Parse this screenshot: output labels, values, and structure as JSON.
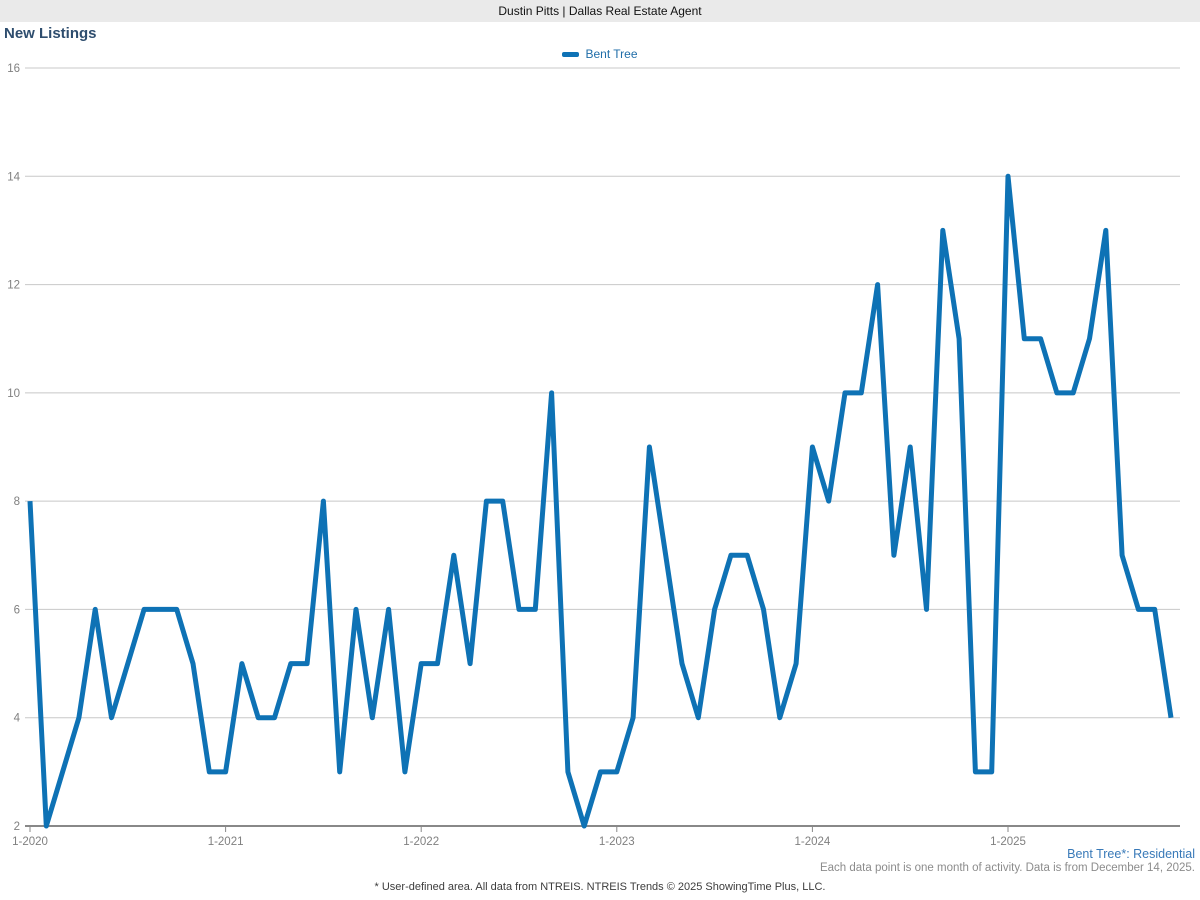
{
  "header": {
    "title": "Dustin Pitts | Dallas Real Estate Agent"
  },
  "page_title": "New Listings",
  "legend": {
    "label": "Bent Tree"
  },
  "footer": {
    "series_note": "Bent Tree*: Residential",
    "activity_note": "Each data point is one month of activity. Data is from December 14, 2025.",
    "disclaimer": "* User-defined area. All data from NTREIS. NTREIS Trends © 2025 ShowingTime Plus, LLC."
  },
  "colors": {
    "line": "#0e72b5",
    "legend_text": "#1f6da8",
    "title_text": "#2e4d6e",
    "series_note_text": "#3879b8",
    "muted_text": "#8c8c8c",
    "grid": "#c8c8c8",
    "axis": "#888888",
    "tick_text": "#808080",
    "header_bg": "#eaeaea"
  },
  "chart_data": {
    "type": "line",
    "title": "New Listings",
    "x_start_month": "1-2020",
    "x_end_month": "11-2025",
    "x_tick_labels": [
      "1-2020",
      "1-2021",
      "1-2022",
      "1-2023",
      "1-2024",
      "1-2025"
    ],
    "y_ticks": [
      2,
      4,
      6,
      8,
      10,
      12,
      14,
      16
    ],
    "ylim": [
      2,
      16
    ],
    "grid": "horizontal",
    "legend_position": "top-center",
    "series": [
      {
        "name": "Bent Tree",
        "months": "monthly from 1-2020 through 11-2025",
        "values": [
          8,
          2,
          3,
          4,
          6,
          4,
          5,
          6,
          6,
          6,
          5,
          3,
          3,
          5,
          4,
          4,
          5,
          5,
          8,
          3,
          6,
          4,
          6,
          3,
          5,
          5,
          7,
          5,
          8,
          8,
          6,
          6,
          10,
          3,
          2,
          3,
          3,
          4,
          9,
          7,
          5,
          4,
          6,
          7,
          7,
          6,
          4,
          5,
          9,
          8,
          10,
          10,
          12,
          7,
          9,
          6,
          13,
          11,
          3,
          3,
          14,
          11,
          11,
          10,
          10,
          11,
          13,
          7,
          6,
          6,
          4
        ]
      }
    ]
  }
}
